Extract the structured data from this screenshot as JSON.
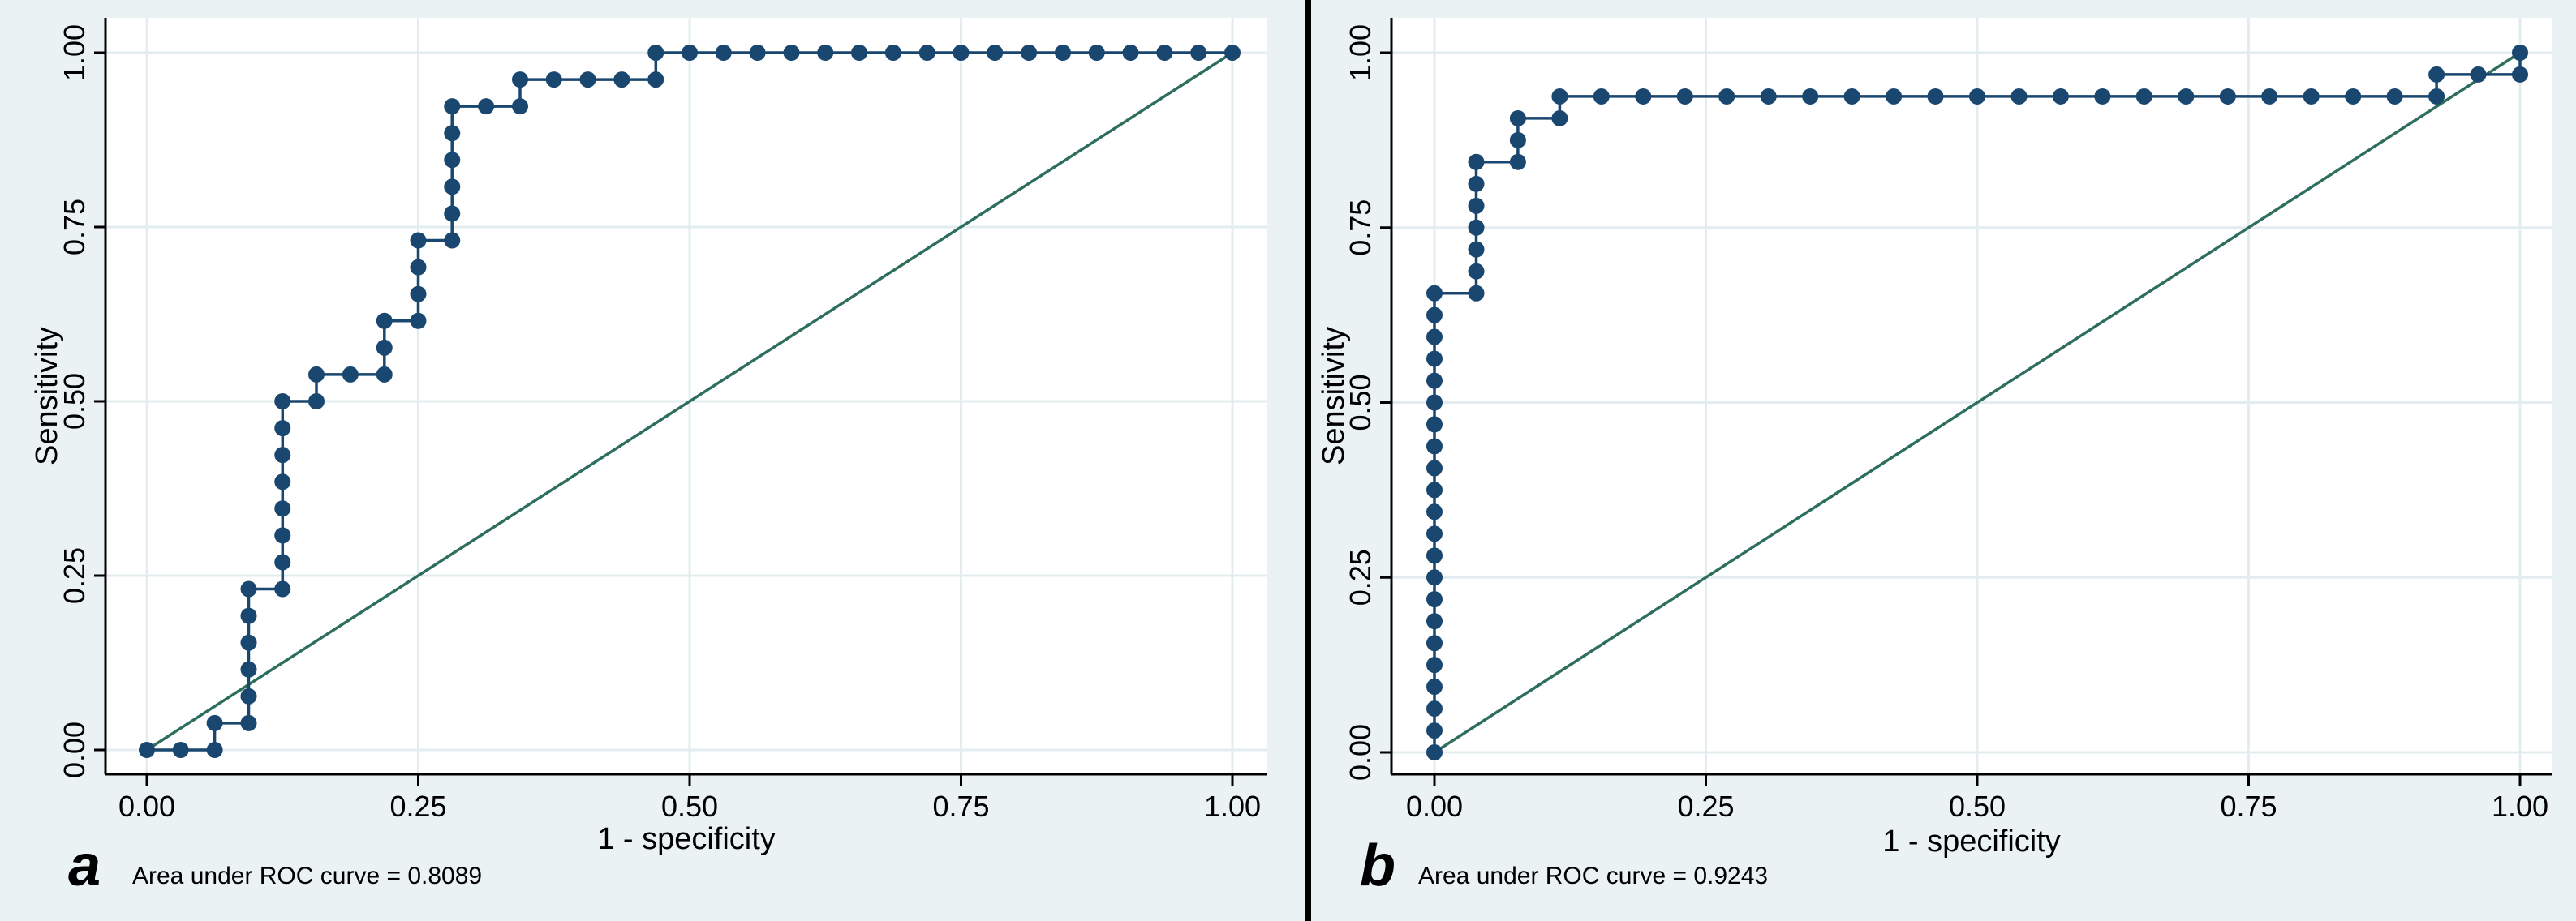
{
  "colors": {
    "background": "#eaf2f3",
    "curve": "#1a476f",
    "reference": "#2d6e5e",
    "grid": "#e3ecee"
  },
  "chart_data": [
    {
      "type": "line",
      "panel_label": "a",
      "xlabel": "1 - specificity",
      "ylabel": "Sensitivity",
      "xlim": [
        0,
        1
      ],
      "ylim": [
        0,
        1
      ],
      "xticks": [
        "0.00",
        "0.25",
        "0.50",
        "0.75",
        "1.00"
      ],
      "yticks": [
        "0.00",
        "0.25",
        "0.50",
        "0.75",
        "1.00"
      ],
      "grid": true,
      "note": "Area under ROC curve = 0.8089",
      "series": [
        {
          "name": "ROC",
          "x": [
            0,
            0.0312,
            0.0625,
            0.0625,
            0.0938,
            0.0938,
            0.0938,
            0.0938,
            0.0938,
            0.0938,
            0.125,
            0.125,
            0.125,
            0.125,
            0.125,
            0.125,
            0.125,
            0.125,
            0.1562,
            0.1562,
            0.1875,
            0.2188,
            0.2188,
            0.2188,
            0.25,
            0.25,
            0.25,
            0.25,
            0.2812,
            0.2812,
            0.2812,
            0.2812,
            0.2812,
            0.2812,
            0.3125,
            0.3438,
            0.3438,
            0.375,
            0.4062,
            0.4375,
            0.4688,
            0.4688,
            0.5,
            0.5312,
            0.5625,
            0.5938,
            0.625,
            0.6562,
            0.6875,
            0.7188,
            0.75,
            0.7812,
            0.8125,
            0.8438,
            0.875,
            0.9062,
            0.9375,
            0.9688,
            1.0
          ],
          "y": [
            0,
            0,
            0,
            0.0385,
            0.0385,
            0.0769,
            0.1154,
            0.1538,
            0.1923,
            0.2308,
            0.2308,
            0.2692,
            0.3077,
            0.3462,
            0.3846,
            0.4231,
            0.4615,
            0.5,
            0.5,
            0.5385,
            0.5385,
            0.5385,
            0.5769,
            0.6154,
            0.6154,
            0.6538,
            0.6923,
            0.7308,
            0.7308,
            0.7692,
            0.8077,
            0.8462,
            0.8846,
            0.9231,
            0.9231,
            0.9231,
            0.9615,
            0.9615,
            0.9615,
            0.9615,
            0.9615,
            1.0,
            1.0,
            1.0,
            1.0,
            1.0,
            1.0,
            1.0,
            1.0,
            1.0,
            1.0,
            1.0,
            1.0,
            1.0,
            1.0,
            1.0,
            1.0,
            1.0,
            1.0
          ]
        },
        {
          "name": "Reference",
          "x": [
            0,
            1
          ],
          "y": [
            0,
            1
          ]
        }
      ]
    },
    {
      "type": "line",
      "panel_label": "b",
      "xlabel": "1 - specificity",
      "ylabel": "Sensitivity",
      "xlim": [
        0,
        1
      ],
      "ylim": [
        0,
        1
      ],
      "xticks": [
        "0.00",
        "0.25",
        "0.50",
        "0.75",
        "1.00"
      ],
      "yticks": [
        "0.00",
        "0.25",
        "0.50",
        "0.75",
        "1.00"
      ],
      "grid": true,
      "note": "Area under ROC curve = 0.9243",
      "series": [
        {
          "name": "ROC",
          "x": [
            0,
            0,
            0,
            0,
            0,
            0,
            0,
            0,
            0,
            0,
            0,
            0,
            0,
            0,
            0,
            0,
            0,
            0,
            0,
            0,
            0,
            0,
            0.0385,
            0.0385,
            0.0385,
            0.0385,
            0.0385,
            0.0385,
            0.0385,
            0.0769,
            0.0769,
            0.0769,
            0.1154,
            0.1154,
            0.1538,
            0.1923,
            0.2308,
            0.2692,
            0.3077,
            0.3462,
            0.3846,
            0.4231,
            0.4615,
            0.5,
            0.5385,
            0.5769,
            0.6154,
            0.6538,
            0.6923,
            0.7308,
            0.7692,
            0.8077,
            0.8462,
            0.8846,
            0.9231,
            0.9231,
            0.9615,
            1.0,
            1.0
          ],
          "y": [
            0,
            0.0312,
            0.0625,
            0.0938,
            0.125,
            0.1562,
            0.1875,
            0.2188,
            0.25,
            0.2812,
            0.3125,
            0.3438,
            0.375,
            0.4062,
            0.4375,
            0.4688,
            0.5,
            0.5312,
            0.5625,
            0.5938,
            0.625,
            0.6562,
            0.6562,
            0.6875,
            0.7188,
            0.75,
            0.7812,
            0.8125,
            0.8438,
            0.8438,
            0.875,
            0.9062,
            0.9062,
            0.9375,
            0.9375,
            0.9375,
            0.9375,
            0.9375,
            0.9375,
            0.9375,
            0.9375,
            0.9375,
            0.9375,
            0.9375,
            0.9375,
            0.9375,
            0.9375,
            0.9375,
            0.9375,
            0.9375,
            0.9375,
            0.9375,
            0.9375,
            0.9375,
            0.9375,
            0.9688,
            0.9688,
            0.9688,
            1.0
          ]
        },
        {
          "name": "Reference",
          "x": [
            0,
            1
          ],
          "y": [
            0,
            1
          ]
        }
      ]
    }
  ]
}
